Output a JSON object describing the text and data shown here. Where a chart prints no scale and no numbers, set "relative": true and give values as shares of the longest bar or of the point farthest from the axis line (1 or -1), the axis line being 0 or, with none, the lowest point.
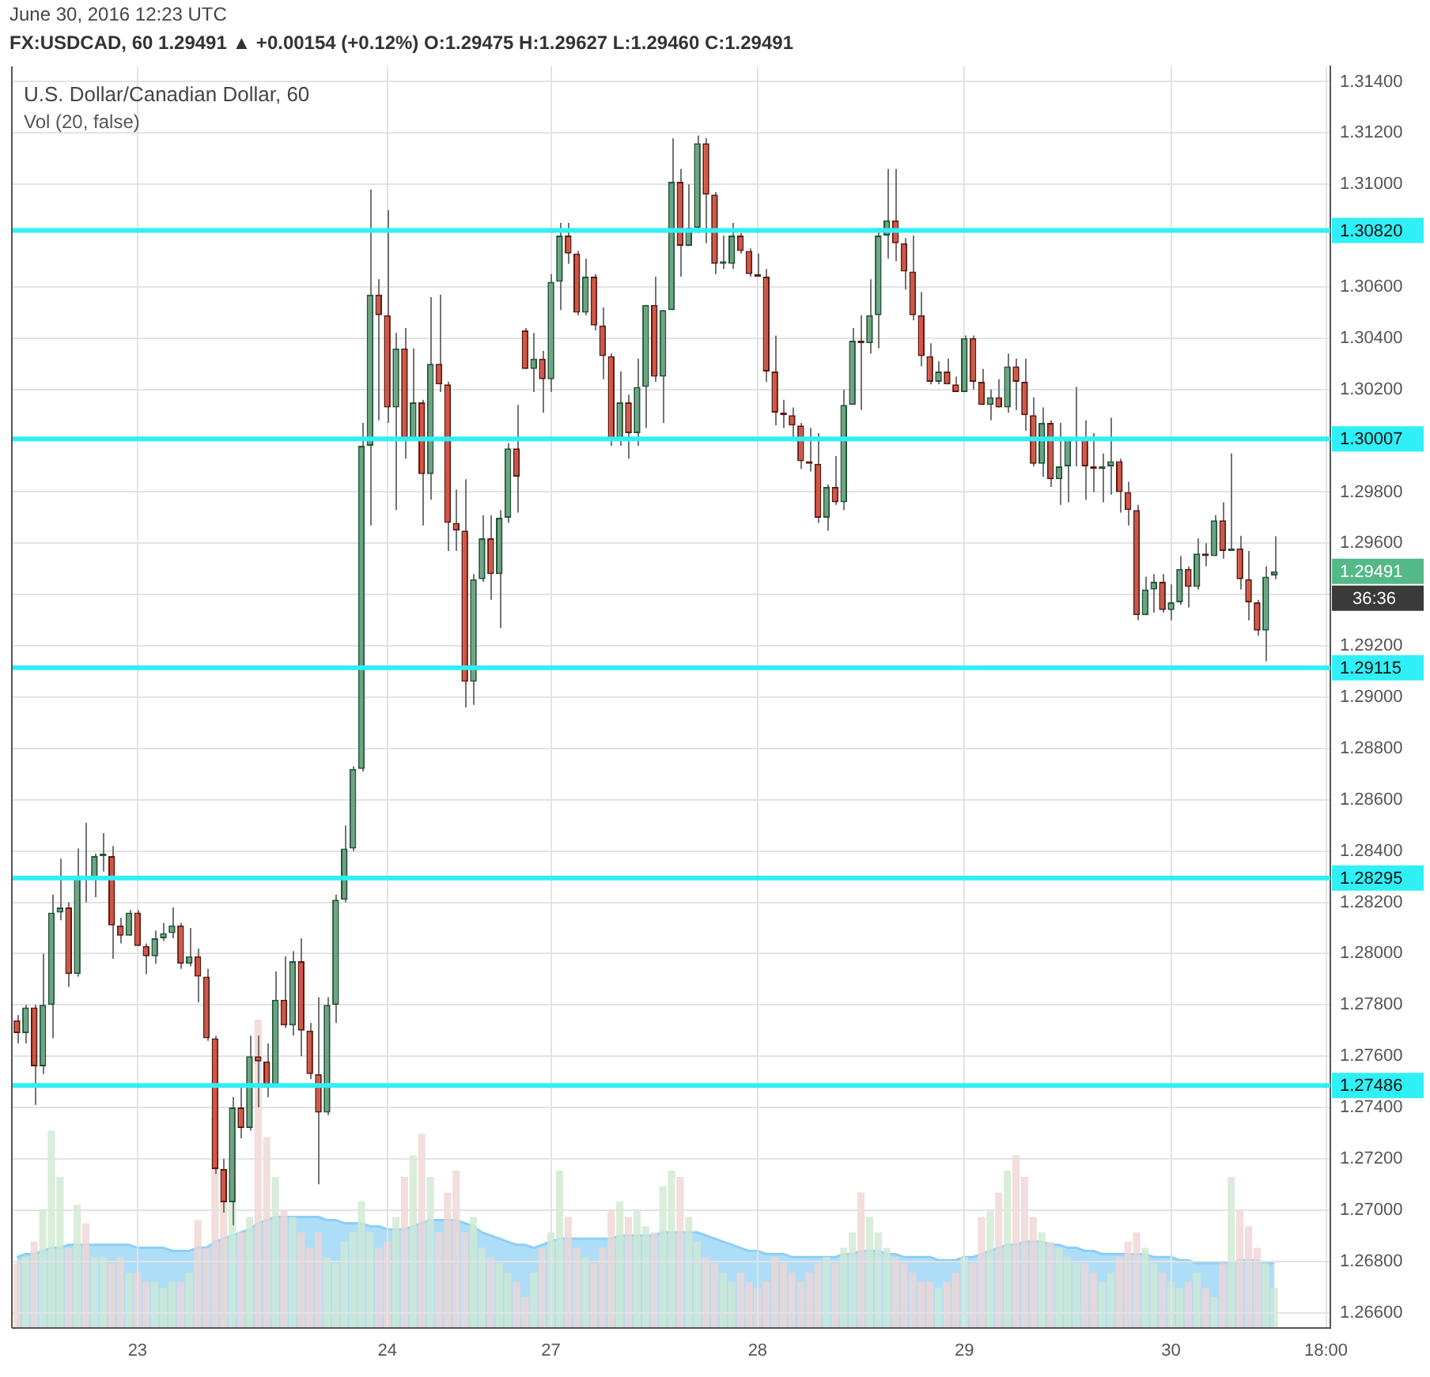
{
  "chart_data": [
    {
      "type": "candlestick",
      "title": "U.S. Dollar/Canadian Dollar, 60",
      "subtitle": "Vol (20, false)",
      "annotations": [
        "June 30, 2016 12:23 UTC",
        "FX:USDCAD, 60  1.29491 ▲ +0.00154 (+0.12%)  O:1.29475 H:1.29627 L:1.29460 C:1.29491",
        "1.29491",
        "36:36"
      ],
      "categories": [
        null,
        null,
        null,
        null,
        null,
        null,
        null,
        null,
        null,
        null,
        null,
        null,
        null,
        null,
        "23",
        null,
        null,
        null,
        null,
        null,
        null,
        null,
        null,
        null,
        null,
        null,
        null,
        null,
        null,
        null,
        null,
        null,
        null,
        null,
        null,
        null,
        null,
        null,
        null,
        null,
        null,
        null,
        null,
        "24",
        null,
        null,
        null,
        null,
        null,
        null,
        null,
        null,
        null,
        null,
        null,
        null,
        null,
        null,
        null,
        null,
        null,
        null,
        "27",
        null,
        null,
        null,
        null,
        null,
        null,
        null,
        null,
        null,
        null,
        null,
        null,
        null,
        null,
        null,
        null,
        null,
        null,
        null,
        null,
        null,
        null,
        null,
        "28",
        null,
        null,
        null,
        null,
        null,
        null,
        null,
        null,
        null,
        null,
        null,
        null,
        null,
        null,
        null,
        null,
        null,
        null,
        null,
        null,
        null,
        null,
        null,
        "29",
        null,
        null,
        null,
        null,
        null,
        null,
        null,
        null,
        null,
        null,
        null,
        null,
        null,
        null,
        null,
        null,
        null,
        null,
        null,
        null,
        null,
        null,
        null,
        "30",
        null,
        null,
        null,
        null,
        null,
        null,
        null,
        null,
        null,
        null,
        null,
        null,
        null,
        null,
        null,
        null,
        null,
        "18:00"
      ],
      "ohlc": [
        [
          1.2774,
          1.2776,
          1.2765,
          1.2769
        ],
        [
          1.2769,
          1.278,
          1.2765,
          1.2779
        ],
        [
          1.2779,
          1.278,
          1.2741,
          1.2756
        ],
        [
          1.2756,
          1.28,
          1.2753,
          1.278
        ],
        [
          1.278,
          1.2823,
          1.2767,
          1.2816
        ],
        [
          1.2816,
          1.2837,
          1.2813,
          1.2818
        ],
        [
          1.2818,
          1.282,
          1.2787,
          1.2792
        ],
        [
          1.2792,
          1.2841,
          1.2791,
          1.283
        ],
        [
          1.283,
          1.2851,
          1.282,
          1.2829
        ],
        [
          1.2829,
          1.2839,
          1.2822,
          1.2838
        ],
        [
          1.2838,
          1.2847,
          1.2832,
          1.2839
        ],
        [
          1.2838,
          1.2842,
          1.2798,
          1.2811
        ],
        [
          1.2811,
          1.2814,
          1.2804,
          1.2807
        ],
        [
          1.2807,
          1.2817,
          1.2807,
          1.2816
        ],
        [
          1.2816,
          1.2817,
          1.2803,
          1.2803
        ],
        [
          1.2803,
          1.2804,
          1.2792,
          1.2799
        ],
        [
          1.2799,
          1.2809,
          1.2796,
          1.2806
        ],
        [
          1.2806,
          1.2812,
          1.2805,
          1.2808
        ],
        [
          1.2808,
          1.2818,
          1.2806,
          1.2811
        ],
        [
          1.2811,
          1.2812,
          1.2794,
          1.2796
        ],
        [
          1.2796,
          1.281,
          1.2795,
          1.2799
        ],
        [
          1.2799,
          1.2802,
          1.2781,
          1.2791
        ],
        [
          1.2791,
          1.2794,
          1.2766,
          1.2767
        ],
        [
          1.2767,
          1.2768,
          1.2714,
          1.2716
        ],
        [
          1.2716,
          1.272,
          1.2699,
          1.2703
        ],
        [
          1.2703,
          1.2744,
          1.2694,
          1.274
        ],
        [
          1.274,
          1.2749,
          1.2728,
          1.2732
        ],
        [
          1.2732,
          1.2768,
          1.2731,
          1.276
        ],
        [
          1.276,
          1.2768,
          1.274,
          1.2758
        ],
        [
          1.2758,
          1.2765,
          1.2744,
          1.2749
        ],
        [
          1.2749,
          1.2793,
          1.2748,
          1.2782
        ],
        [
          1.2782,
          1.2799,
          1.2771,
          1.2772
        ],
        [
          1.2772,
          1.2801,
          1.2768,
          1.2797
        ],
        [
          1.2797,
          1.2806,
          1.276,
          1.277
        ],
        [
          1.277,
          1.2773,
          1.2751,
          1.2753
        ],
        [
          1.2753,
          1.2783,
          1.271,
          1.2738
        ],
        [
          1.2738,
          1.2783,
          1.2737,
          1.278
        ],
        [
          1.278,
          1.2823,
          1.2773,
          1.2821
        ],
        [
          1.2821,
          1.285,
          1.282,
          1.2841
        ],
        [
          1.2841,
          1.2873,
          1.284,
          1.2872
        ],
        [
          1.2872,
          1.3007,
          1.2871,
          1.2998
        ],
        [
          1.2998,
          1.3098,
          1.2967,
          1.3057
        ],
        [
          1.3057,
          1.3063,
          1.3008,
          1.3049
        ],
        [
          1.3049,
          1.309,
          1.3007,
          1.3013
        ],
        [
          1.3013,
          1.3042,
          1.2973,
          1.3036
        ],
        [
          1.3036,
          1.3044,
          1.2993,
          1.3001
        ],
        [
          1.3001,
          1.3036,
          1.3001,
          1.3015
        ],
        [
          1.3015,
          1.3016,
          1.2967,
          1.2987
        ],
        [
          1.2987,
          1.3056,
          1.2977,
          1.303
        ],
        [
          1.303,
          1.3057,
          1.3019,
          1.3022
        ],
        [
          1.3022,
          1.3023,
          1.2957,
          1.2968
        ],
        [
          1.2968,
          1.2981,
          1.2957,
          1.2965
        ],
        [
          1.2965,
          1.2985,
          1.2896,
          1.2906
        ],
        [
          1.2906,
          1.2948,
          1.2897,
          1.2946
        ],
        [
          1.2946,
          1.2971,
          1.2945,
          1.2962
        ],
        [
          1.2962,
          1.2971,
          1.2938,
          1.2948
        ],
        [
          1.2948,
          1.2973,
          1.2927,
          1.297
        ],
        [
          1.297,
          1.2999,
          1.2968,
          1.2997
        ],
        [
          1.2997,
          1.3014,
          1.2972,
          1.2986
        ],
        [
          1.3043,
          1.3044,
          1.3028,
          1.3028
        ],
        [
          1.3028,
          1.3042,
          1.3019,
          1.3032
        ],
        [
          1.3032,
          1.3035,
          1.3011,
          1.3024
        ],
        [
          1.3024,
          1.3065,
          1.3019,
          1.3062
        ],
        [
          1.3062,
          1.3085,
          1.3051,
          1.308
        ],
        [
          1.308,
          1.3085,
          1.3069,
          1.3073
        ],
        [
          1.3073,
          1.3074,
          1.3049,
          1.305
        ],
        [
          1.305,
          1.3071,
          1.3049,
          1.3064
        ],
        [
          1.3064,
          1.3065,
          1.3043,
          1.3045
        ],
        [
          1.3045,
          1.3052,
          1.3024,
          1.3033
        ],
        [
          1.3033,
          1.3034,
          1.2998,
          1.3001
        ],
        [
          1.3001,
          1.3027,
          1.2998,
          1.3015
        ],
        [
          1.3015,
          1.3018,
          1.2993,
          1.3003
        ],
        [
          1.3003,
          1.3032,
          1.2998,
          1.3021
        ],
        [
          1.3021,
          1.3053,
          1.3005,
          1.3053
        ],
        [
          1.3053,
          1.3064,
          1.3023,
          1.3025
        ],
        [
          1.3025,
          1.3051,
          1.3007,
          1.3051
        ],
        [
          1.3051,
          1.3118,
          1.3051,
          1.3101
        ],
        [
          1.3101,
          1.3106,
          1.3064,
          1.3076
        ],
        [
          1.3076,
          1.31,
          1.3076,
          1.3083
        ],
        [
          1.3083,
          1.3119,
          1.3081,
          1.3116
        ],
        [
          1.3116,
          1.3118,
          1.3077,
          1.3096
        ],
        [
          1.3096,
          1.3097,
          1.3065,
          1.3069
        ],
        [
          1.3069,
          1.308,
          1.3067,
          1.307
        ],
        [
          1.3069,
          1.3085,
          1.3067,
          1.308
        ],
        [
          1.308,
          1.3081,
          1.3073,
          1.3074
        ],
        [
          1.3074,
          1.3075,
          1.3064,
          1.3065
        ],
        [
          1.3065,
          1.3073,
          1.3064,
          1.3064
        ],
        [
          1.3064,
          1.3067,
          1.3023,
          1.3027
        ],
        [
          1.3027,
          1.3041,
          1.3006,
          1.3011
        ],
        [
          1.3011,
          1.3016,
          1.3005,
          1.301
        ],
        [
          1.301,
          1.3013,
          1.3001,
          1.3006
        ],
        [
          1.3006,
          1.3007,
          1.2989,
          1.2992
        ],
        [
          1.2992,
          1.3005,
          1.2988,
          1.2991
        ],
        [
          1.2991,
          1.3003,
          1.2968,
          1.297
        ],
        [
          1.297,
          1.2983,
          1.2965,
          1.2982
        ],
        [
          1.2982,
          1.2994,
          1.2975,
          1.2976
        ],
        [
          1.2976,
          1.302,
          1.2973,
          1.3014
        ],
        [
          1.3014,
          1.3044,
          1.3014,
          1.3039
        ],
        [
          1.3039,
          1.3049,
          1.3012,
          1.3038
        ],
        [
          1.3038,
          1.3063,
          1.3034,
          1.3049
        ],
        [
          1.3049,
          1.3083,
          1.3036,
          1.308
        ],
        [
          1.308,
          1.3106,
          1.3071,
          1.3086
        ],
        [
          1.3086,
          1.3106,
          1.307,
          1.3077
        ],
        [
          1.3077,
          1.3079,
          1.3059,
          1.3066
        ],
        [
          1.3066,
          1.308,
          1.3047,
          1.3049
        ],
        [
          1.3049,
          1.3058,
          1.3029,
          1.3033
        ],
        [
          1.3033,
          1.3038,
          1.3022,
          1.3023
        ],
        [
          1.3023,
          1.3031,
          1.3022,
          1.3027
        ],
        [
          1.3027,
          1.3032,
          1.3022,
          1.3022
        ],
        [
          1.3022,
          1.3025,
          1.3019,
          1.3019
        ],
        [
          1.3019,
          1.3041,
          1.3019,
          1.304
        ],
        [
          1.304,
          1.3041,
          1.302,
          1.3023
        ],
        [
          1.3023,
          1.3028,
          1.3014,
          1.3014
        ],
        [
          1.3014,
          1.302,
          1.3008,
          1.3017
        ],
        [
          1.3017,
          1.3024,
          1.3013,
          1.3013
        ],
        [
          1.3013,
          1.3034,
          1.3011,
          1.3029
        ],
        [
          1.3029,
          1.3032,
          1.3012,
          1.3023
        ],
        [
          1.3023,
          1.3032,
          1.3004,
          1.301
        ],
        [
          1.301,
          1.3017,
          1.299,
          1.2991
        ],
        [
          1.2991,
          1.3013,
          1.2986,
          1.3007
        ],
        [
          1.3007,
          1.3008,
          1.2982,
          1.2985
        ],
        [
          1.2985,
          1.3007,
          1.2975,
          1.299
        ],
        [
          1.299,
          1.3001,
          1.2976,
          1.3001
        ],
        [
          1.3,
          1.3021,
          1.299,
          1.3001
        ],
        [
          1.3001,
          1.3008,
          1.2977,
          1.299
        ],
        [
          1.299,
          1.3003,
          1.298,
          1.2989
        ],
        [
          1.2989,
          1.2995,
          1.2976,
          1.299
        ],
        [
          1.299,
          1.3009,
          1.2979,
          1.2992
        ],
        [
          1.2992,
          1.2993,
          1.2972,
          1.298
        ],
        [
          1.298,
          1.2984,
          1.2967,
          1.2973
        ],
        [
          1.2973,
          1.2975,
          1.293,
          1.2932
        ],
        [
          1.2932,
          1.2947,
          1.2932,
          1.2942
        ],
        [
          1.2942,
          1.2948,
          1.2933,
          1.2945
        ],
        [
          1.2945,
          1.2948,
          1.2933,
          1.2934
        ],
        [
          1.2934,
          1.2944,
          1.293,
          1.2937
        ],
        [
          1.2937,
          1.2955,
          1.2936,
          1.295
        ],
        [
          1.295,
          1.2951,
          1.2935,
          1.2943
        ],
        [
          1.2943,
          1.2962,
          1.2942,
          1.2956
        ],
        [
          1.2956,
          1.296,
          1.2951,
          1.2955
        ],
        [
          1.2955,
          1.2971,
          1.2955,
          1.2969
        ],
        [
          1.2969,
          1.2976,
          1.2954,
          1.2957
        ],
        [
          1.2957,
          1.2995,
          1.2957,
          1.2958
        ],
        [
          1.2958,
          1.2963,
          1.2942,
          1.2946
        ],
        [
          1.2946,
          1.2957,
          1.293,
          1.2937
        ],
        [
          1.2937,
          1.2938,
          1.2924,
          1.2926
        ],
        [
          1.2926,
          1.2951,
          1.2914,
          1.2947
        ],
        [
          1.29475,
          1.29627,
          1.2946,
          1.29491
        ],
        null,
        null,
        null,
        null,
        null,
        null
      ],
      "ylim": [
        1.2654,
        1.3146
      ],
      "yticks": [
        {
          "value": 1.266,
          "label": "1.26600"
        },
        {
          "value": 1.268,
          "label": "1.26800"
        },
        {
          "value": 1.27,
          "label": "1.27000"
        },
        {
          "value": 1.272,
          "label": "1.27200"
        },
        {
          "value": 1.274,
          "label": "1.27400"
        },
        {
          "value": 1.276,
          "label": "1.27600"
        },
        {
          "value": 1.278,
          "label": "1.27800"
        },
        {
          "value": 1.28,
          "label": "1.28000"
        },
        {
          "value": 1.282,
          "label": "1.28200"
        },
        {
          "value": 1.284,
          "label": "1.28400"
        },
        {
          "value": 1.286,
          "label": "1.28600"
        },
        {
          "value": 1.288,
          "label": "1.28800"
        },
        {
          "value": 1.29,
          "label": "1.29000"
        },
        {
          "value": 1.292,
          "label": "1.29200"
        },
        {
          "value": 1.294,
          "label": null
        },
        {
          "value": 1.296,
          "label": "1.29600"
        },
        {
          "value": 1.298,
          "label": "1.29800"
        },
        {
          "value": 1.302,
          "label": "1.30200"
        },
        {
          "value": 1.304,
          "label": "1.30400"
        },
        {
          "value": 1.306,
          "label": "1.30600"
        },
        {
          "value": 1.31,
          "label": "1.31000"
        },
        {
          "value": 1.312,
          "label": "1.31200"
        },
        {
          "value": 1.314,
          "label": "1.31400"
        }
      ],
      "grid": true,
      "ref_lines": [
        {
          "axis": "y",
          "value": 1.3082,
          "label": "1.30820",
          "color": "#2ef0f6"
        },
        {
          "axis": "y",
          "value": 1.30007,
          "label": "1.30007",
          "color": "#2ef0f6"
        },
        {
          "axis": "y",
          "value": 1.29115,
          "label": "1.29115",
          "color": "#2ef0f6"
        },
        {
          "axis": "y",
          "value": 1.28295,
          "label": "1.28295",
          "color": "#2ef0f6"
        },
        {
          "axis": "y",
          "value": 1.27486,
          "label": "1.27486",
          "color": "#2ef0f6"
        }
      ]
    },
    {
      "type": "bar",
      "relative": true,
      "categories": [
        null,
        null,
        null,
        null,
        null,
        null,
        null,
        null,
        null,
        null,
        null,
        null,
        null,
        null,
        null,
        null,
        null,
        null,
        null,
        null,
        null,
        null,
        null,
        null,
        null,
        null,
        null,
        null,
        null,
        null,
        null,
        null,
        null,
        null,
        null,
        null,
        null,
        null,
        null,
        null,
        null,
        null,
        null,
        null,
        null,
        null,
        null,
        null,
        null,
        null,
        null,
        null,
        null,
        null,
        null,
        null,
        null,
        null,
        null,
        null,
        null,
        null,
        null,
        null,
        null,
        null,
        null,
        null,
        null,
        null,
        null,
        null,
        null,
        null,
        null,
        null,
        null,
        null,
        null,
        null,
        null,
        null,
        null,
        null,
        null,
        null,
        null,
        null,
        null,
        null,
        null,
        null,
        null,
        null,
        null,
        null,
        null,
        null,
        null,
        null,
        null,
        null,
        null,
        null,
        null,
        null,
        null,
        null,
        null,
        null,
        null,
        null,
        null,
        null,
        null,
        null,
        null,
        null,
        null,
        null,
        null,
        null,
        null,
        null,
        null,
        null,
        null,
        null,
        null,
        null,
        null,
        null,
        null,
        null,
        null,
        null,
        null,
        null,
        null,
        null,
        null,
        null,
        null,
        null,
        null,
        null,
        null,
        null,
        null,
        null,
        null,
        null,
        null
      ],
      "series": [
        {
          "color": "#cfe8d2",
          "values": [
            null,
            0.23,
            null,
            0.38,
            0.64,
            0.49,
            null,
            0.4,
            null,
            0.23,
            0.23,
            null,
            null,
            0.18,
            null,
            null,
            0.15,
            0.13,
            0.15,
            null,
            0.18,
            null,
            null,
            null,
            null,
            0.48,
            null,
            0.36,
            null,
            null,
            0.49,
            null,
            0.36,
            null,
            null,
            null,
            0.23,
            0.21,
            0.28,
            0.31,
            0.41,
            0.31,
            null,
            null,
            0.36,
            null,
            0.56,
            null,
            0.49,
            null,
            null,
            null,
            null,
            0.36,
            0.26,
            null,
            0.21,
            0.18,
            null,
            null,
            0.18,
            null,
            0.31,
            0.51,
            null,
            null,
            0.23,
            null,
            null,
            null,
            0.41,
            null,
            0.38,
            0.33,
            null,
            0.46,
            0.51,
            null,
            0.36,
            0.28,
            null,
            null,
            0.18,
            0.15,
            null,
            null,
            null,
            null,
            null,
            null,
            null,
            null,
            null,
            null,
            0.23,
            null,
            0.26,
            0.31,
            null,
            0.36,
            0.31,
            0.26,
            null,
            null,
            null,
            null,
            null,
            0.13,
            null,
            null,
            0.23,
            null,
            null,
            0.38,
            null,
            0.51,
            null,
            null,
            null,
            0.31,
            null,
            0.26,
            0.23,
            0.21,
            null,
            null,
            0.15,
            0.18,
            null,
            null,
            null,
            0.26,
            0.21,
            null,
            0.15,
            0.13,
            null,
            0.18,
            null,
            0.1,
            null,
            0.49,
            null,
            null,
            null,
            0.21,
            0.13,
            null,
            null,
            null,
            null,
            null,
            null
          ]
        },
        {
          "color": "#efd6d3",
          "values": [
            0.21,
            null,
            0.28,
            null,
            null,
            null,
            0.26,
            null,
            0.34,
            null,
            null,
            0.21,
            0.23,
            null,
            0.18,
            0.15,
            null,
            null,
            null,
            0.15,
            null,
            0.35,
            0.26,
            0.68,
            0.41,
            null,
            0.31,
            null,
            1,
            0.62,
            null,
            0.38,
            null,
            0.31,
            0.26,
            0.31,
            null,
            null,
            null,
            null,
            null,
            null,
            0.26,
            0.28,
            null,
            0.49,
            null,
            0.63,
            null,
            0.31,
            0.44,
            0.51,
            0.31,
            null,
            null,
            0.23,
            null,
            null,
            0.15,
            0.1,
            null,
            0.26,
            null,
            null,
            0.36,
            0.26,
            null,
            0.21,
            0.26,
            0.38,
            null,
            0.36,
            null,
            null,
            0.31,
            null,
            null,
            0.49,
            null,
            null,
            0.23,
            0.21,
            null,
            null,
            0.18,
            0.15,
            0.13,
            0.15,
            0.23,
            0.21,
            0.18,
            0.15,
            0.18,
            0.21,
            null,
            0.21,
            null,
            null,
            0.44,
            null,
            null,
            null,
            0.23,
            0.21,
            0.18,
            0.15,
            0.15,
            null,
            0.15,
            0.18,
            null,
            0.21,
            0.36,
            null,
            0.44,
            null,
            0.56,
            0.49,
            0.36,
            null,
            0.28,
            null,
            null,
            null,
            0.21,
            0.18,
            null,
            null,
            0.23,
            0.28,
            0.31,
            null,
            null,
            0.18,
            null,
            null,
            0.15,
            null,
            0.13,
            null,
            0.21,
            null,
            0.38,
            0.33,
            0.26,
            null,
            null,
            null,
            null,
            null,
            null,
            null,
            null
          ]
        },
        {
          "type": "area",
          "color": "#8ccff5",
          "values": [
            0.23,
            0.24,
            0.24,
            0.25,
            0.26,
            0.26,
            0.27,
            0.27,
            0.27,
            0.27,
            0.27,
            0.27,
            0.27,
            0.27,
            0.26,
            0.26,
            0.26,
            0.26,
            0.25,
            0.25,
            0.25,
            0.26,
            0.26,
            0.28,
            0.29,
            0.3,
            0.31,
            0.32,
            0.34,
            0.35,
            0.36,
            0.36,
            0.36,
            0.36,
            0.36,
            0.36,
            0.35,
            0.35,
            0.34,
            0.34,
            0.34,
            0.33,
            0.33,
            0.32,
            0.32,
            0.32,
            0.33,
            0.34,
            0.35,
            0.35,
            0.35,
            0.35,
            0.34,
            0.33,
            0.31,
            0.3,
            0.29,
            0.28,
            0.27,
            0.27,
            0.26,
            0.27,
            0.28,
            0.29,
            0.29,
            0.29,
            0.29,
            0.29,
            0.29,
            0.29,
            0.3,
            0.3,
            0.3,
            0.3,
            0.3,
            0.31,
            0.31,
            0.31,
            0.31,
            0.31,
            0.3,
            0.29,
            0.28,
            0.27,
            0.26,
            0.25,
            0.25,
            0.24,
            0.24,
            0.24,
            0.23,
            0.23,
            0.23,
            0.23,
            0.23,
            0.23,
            0.24,
            0.24,
            0.25,
            0.25,
            0.25,
            0.24,
            0.24,
            0.23,
            0.23,
            0.23,
            0.23,
            0.22,
            0.22,
            0.22,
            0.23,
            0.23,
            0.24,
            0.25,
            0.26,
            0.27,
            0.27,
            0.28,
            0.28,
            0.28,
            0.27,
            0.27,
            0.26,
            0.26,
            0.25,
            0.25,
            0.24,
            0.24,
            0.24,
            0.24,
            0.24,
            0.24,
            0.23,
            0.23,
            0.23,
            0.22,
            0.22,
            0.21,
            0.21,
            0.21,
            0.21,
            0.21,
            0.22,
            0.22,
            0.22,
            0.21,
            0.21,
            null,
            null,
            null,
            null,
            null,
            null
          ]
        }
      ]
    }
  ]
}
